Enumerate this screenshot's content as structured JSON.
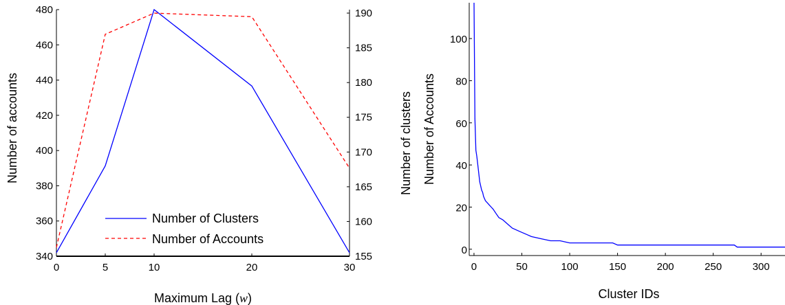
{
  "chart_data": [
    {
      "type": "line",
      "xlabel": "Maximum Lag (",
      "xlabel_var": "w",
      "xlabel_end": ")",
      "ylabel_left": "Number of accounts",
      "ylabel_right": "Number of clusters",
      "x": [
        0,
        5,
        10,
        20,
        30
      ],
      "xticks": [
        0,
        5,
        10,
        20,
        30
      ],
      "xlim": [
        0,
        30
      ],
      "ylim_left": [
        340,
        480
      ],
      "yticks_left": [
        340,
        360,
        380,
        400,
        420,
        440,
        460,
        480
      ],
      "ylim_right": [
        155,
        190.5
      ],
      "yticks_right": [
        155,
        160,
        165,
        170,
        175,
        180,
        185,
        190
      ],
      "series": [
        {
          "name": "Number of Clusters",
          "axis": "right",
          "style": "solid",
          "color": "#0000ff",
          "values": [
            155.5,
            168,
            190.5,
            179.5,
            155.5
          ]
        },
        {
          "name": "Number of Accounts",
          "axis": "left",
          "style": "dashed",
          "color": "#ff0000",
          "values": [
            345,
            466,
            478,
            476,
            390
          ]
        }
      ],
      "legend": "bottom-center",
      "grid": false
    },
    {
      "type": "line",
      "xlabel": "Cluster IDs",
      "ylabel": "Number of Accounts",
      "xlim": [
        -5,
        325
      ],
      "xticks": [
        0,
        50,
        100,
        150,
        200,
        250,
        300
      ],
      "ylim": [
        -3,
        117
      ],
      "yticks": [
        0,
        20,
        40,
        60,
        80,
        100
      ],
      "series": [
        {
          "color": "#0000ff",
          "x": [
            0,
            1,
            2,
            3,
            4,
            5,
            6,
            7,
            8,
            9,
            10,
            12,
            14,
            16,
            18,
            20,
            23,
            26,
            30,
            35,
            40,
            45,
            50,
            55,
            60,
            70,
            80,
            90,
            100,
            145,
            150,
            200,
            272,
            275,
            325
          ],
          "y": [
            117,
            62,
            47,
            44,
            40,
            36,
            32,
            30,
            28,
            27,
            25,
            23,
            22,
            21,
            20,
            19,
            17,
            15,
            14,
            12,
            10,
            9,
            8,
            7,
            6,
            5,
            4,
            4,
            3,
            3,
            2,
            2,
            2,
            1,
            1
          ]
        }
      ],
      "grid": false
    }
  ]
}
